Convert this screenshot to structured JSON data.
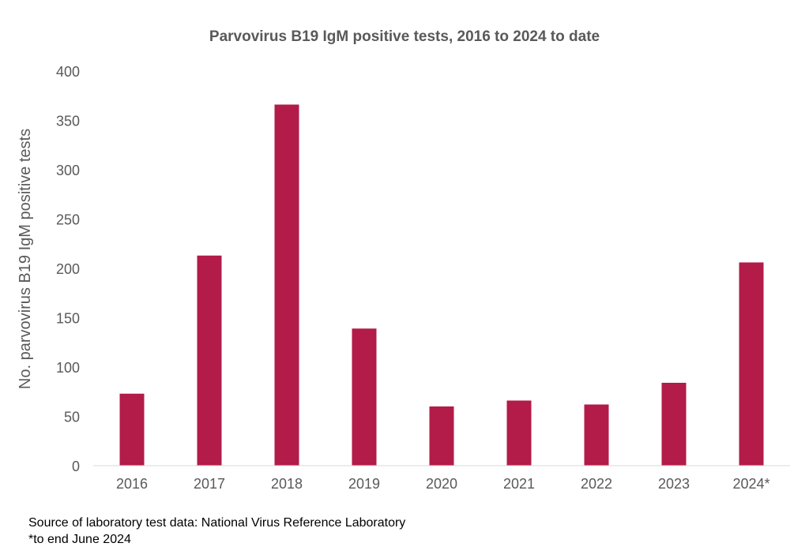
{
  "chart_data": {
    "type": "bar",
    "title": "Parvovirus B19 IgM positive tests, 2016 to 2024 to date",
    "xlabel": "",
    "ylabel": "No. parvovirus B19 IgM positive tests",
    "categories": [
      "2016",
      "2017",
      "2018",
      "2019",
      "2020",
      "2021",
      "2022",
      "2023",
      "2024*"
    ],
    "values": [
      73,
      213,
      366,
      139,
      60,
      66,
      62,
      84,
      206
    ],
    "ylim": [
      0,
      400
    ],
    "yticks": [
      0,
      50,
      100,
      150,
      200,
      250,
      300,
      350,
      400
    ],
    "grid": false,
    "legend": "none",
    "bar_color": "#B31B48",
    "axis_color": "#D9D9D9",
    "text_color": "#595959"
  },
  "footnotes": {
    "source": "Source of laboratory test data: National Virus Reference Laboratory",
    "note": "*to end June 2024"
  }
}
